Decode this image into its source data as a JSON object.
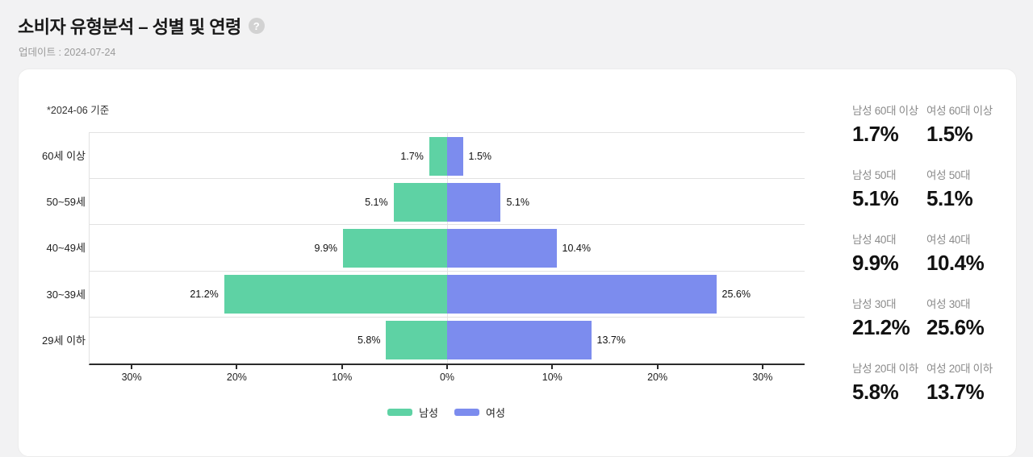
{
  "page": {
    "title": "소비자 유형분석 – 성별 및 연령",
    "updated": "업데이트 : 2024-07-24",
    "note": "*2024-06 기준"
  },
  "colors": {
    "male": "#5ed2a4",
    "female": "#7c8cee",
    "axis": "#2b2b2b",
    "grid": "#e2e2e2"
  },
  "chart_data": {
    "type": "bar",
    "orientation": "horizontal-pyramid",
    "title": "소비자 유형분석 – 성별 및 연령",
    "categories": [
      "60세 이상",
      "50~59세",
      "40~49세",
      "30~39세",
      "29세 이하"
    ],
    "series": [
      {
        "name": "남성",
        "color": "#5ed2a4",
        "side": "left",
        "values": [
          1.7,
          5.1,
          9.9,
          21.2,
          5.8
        ],
        "labels": [
          "1.7%",
          "5.1%",
          "9.9%",
          "21.2%",
          "5.8%"
        ]
      },
      {
        "name": "여성",
        "color": "#7c8cee",
        "side": "right",
        "values": [
          1.5,
          5.1,
          10.4,
          25.6,
          13.7
        ],
        "labels": [
          "1.5%",
          "5.1%",
          "10.4%",
          "25.6%",
          "13.7%"
        ]
      }
    ],
    "value_suffix": "%",
    "xlim": [
      -34,
      34
    ],
    "xticks": [
      -30,
      -20,
      -10,
      0,
      10,
      20,
      30
    ],
    "xtick_labels": [
      "30%",
      "20%",
      "10%",
      "0%",
      "10%",
      "20%",
      "30%"
    ],
    "grid": "zero-line-only",
    "legend": [
      "남성",
      "여성"
    ],
    "legend_position": "bottom"
  },
  "summary": {
    "rows": [
      {
        "male_label": "남성 60대 이상",
        "male_value": "1.7%",
        "female_label": "여성 60대 이상",
        "female_value": "1.5%"
      },
      {
        "male_label": "남성 50대",
        "male_value": "5.1%",
        "female_label": "여성 50대",
        "female_value": "5.1%"
      },
      {
        "male_label": "남성 40대",
        "male_value": "9.9%",
        "female_label": "여성 40대",
        "female_value": "10.4%"
      },
      {
        "male_label": "남성 30대",
        "male_value": "21.2%",
        "female_label": "여성 30대",
        "female_value": "25.6%"
      },
      {
        "male_label": "남성 20대 이하",
        "male_value": "5.8%",
        "female_label": "여성 20대 이하",
        "female_value": "13.7%"
      }
    ]
  }
}
